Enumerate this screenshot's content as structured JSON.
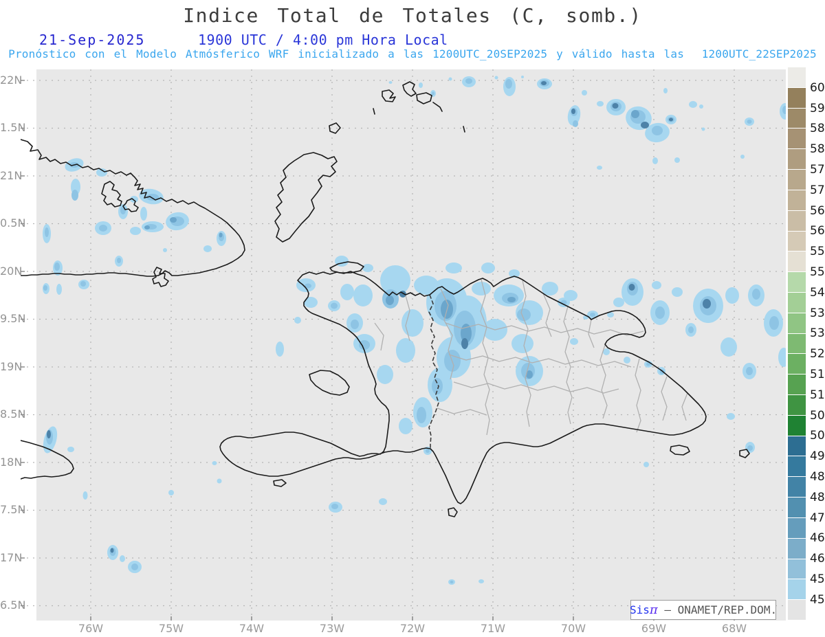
{
  "header": {
    "title": "Indice Total de Totales (C, somb.)",
    "date_label": "21-Sep-2025",
    "time_label": "1900 UTC / 4:00 pm Hora Local",
    "subtitle": "Pronóstico con el Modelo Atmósferico WRF inicializado a las 1200UTC_20SEP2025 y válido hasta las  1200UTC_22SEP2025"
  },
  "axes": {
    "lat_labels": [
      "22N",
      "1.5N",
      "21N",
      "0.5N",
      "20N",
      "9.5N",
      "19N",
      "8.5N",
      "18N",
      "7.5N",
      "17N",
      "6.5N"
    ],
    "lon_labels": [
      "76W",
      "75W",
      "74W",
      "73W",
      "72W",
      "71W",
      "70W",
      "69W",
      "68W"
    ]
  },
  "colorbar": {
    "tick_labels": [
      "60",
      "59",
      "58.5",
      "58",
      "57.5",
      "57",
      "56.5",
      "56",
      "55.5",
      "55",
      "54.2",
      "53.6",
      "53",
      "52.4",
      "51.8",
      "51.2",
      "50.6",
      "50",
      "49.2",
      "48.6",
      "48",
      "47.4",
      "46.8",
      "46.2",
      "45.6",
      "45"
    ],
    "segment_colors_top_to_bottom": [
      "#ecebe7",
      "#94805c",
      "#9d8a68",
      "#a69274",
      "#af9d80",
      "#b8a88c",
      "#c1b298",
      "#cabda6",
      "#d5cab6",
      "#e5e0d4",
      "#b5d9aa",
      "#a3cf96",
      "#90c584",
      "#7eba72",
      "#6cb062",
      "#57a251",
      "#3f9442",
      "#1f8233",
      "#2d6e92",
      "#357a9e",
      "#4283a6",
      "#5290b0",
      "#659dbc",
      "#7cadc9",
      "#92c0da",
      "#a5d3ea",
      "#e4e4e4"
    ]
  },
  "shading": {
    "level_45_to_45_6": "#a7d7f0",
    "level_45_6_to_46_2": "#8ec4e4",
    "level_46_2_to_46_8": "#6ba6cc",
    "level_46_8_plus": "#4d82a8"
  },
  "colors": {
    "title_text": "#3c3c3c",
    "datetime_blue": "#2a36d8",
    "subtitle_cyan": "#3aa6ee",
    "map_background": "#e8e8e8",
    "outside_domain": "#ffffff",
    "coastline": "#1a1a1a",
    "province_border": "#b0b0b0",
    "country_border": "#3a3a3a",
    "gridline": "#b4b4b4"
  },
  "attribution": {
    "prefix": "Sis",
    "pi": "π",
    "text": " – ONAMET/REP.DOM."
  }
}
